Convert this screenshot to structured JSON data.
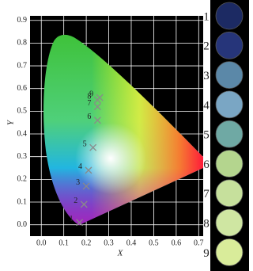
{
  "chart_data": {
    "type": "scatter",
    "x_label": "X",
    "y_label": "Y",
    "x": [
      0.17,
      0.19,
      0.2,
      0.21,
      0.23,
      0.25,
      0.25,
      0.25,
      0.26
    ],
    "y": [
      0.01,
      0.09,
      0.17,
      0.24,
      0.34,
      0.46,
      0.52,
      0.55,
      0.56
    ],
    "point_labels": [
      "1",
      "2",
      "3",
      "4",
      "5",
      "6",
      "7",
      "8",
      "9"
    ],
    "marker_color": "#8a8a8a",
    "xlim": [
      -0.05,
      0.72
    ],
    "ylim": [
      -0.05,
      0.92
    ],
    "xticks": [
      {
        "value": 0,
        "label": "0.0"
      },
      0.1,
      0.2,
      0.3,
      0.4,
      0.5,
      0.6,
      0.7
    ],
    "yticks": [
      {
        "value": 0,
        "label": "0.0"
      },
      0.1,
      0.2,
      0.3,
      0.4,
      0.5,
      0.6,
      0.7,
      0.8,
      0.9
    ],
    "grid": true
  },
  "samples": {
    "labels": [
      "1",
      "2",
      "3",
      "4",
      "5",
      "6",
      "7",
      "8",
      "9"
    ],
    "colors": [
      "#1c2a63",
      "#26357a",
      "#5b88a8",
      "#7aa6c4",
      "#6fa9a4",
      "#b4d58e",
      "#c6e09c",
      "#cfe6a2",
      "#d9ec9a"
    ]
  }
}
